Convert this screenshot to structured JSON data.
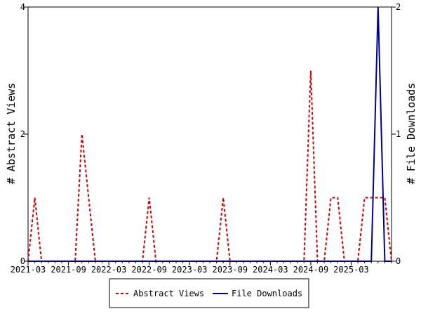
{
  "chart_data": {
    "type": "line",
    "x": [
      "2021-03",
      "2021-04",
      "2021-05",
      "2021-06",
      "2021-07",
      "2021-08",
      "2021-09",
      "2021-10",
      "2021-11",
      "2021-12",
      "2022-01",
      "2022-02",
      "2022-03",
      "2022-04",
      "2022-05",
      "2022-06",
      "2022-07",
      "2022-08",
      "2022-09",
      "2022-10",
      "2022-11",
      "2022-12",
      "2023-01",
      "2023-02",
      "2023-03",
      "2023-04",
      "2023-05",
      "2023-06",
      "2023-07",
      "2023-08",
      "2023-09",
      "2023-10",
      "2023-11",
      "2023-12",
      "2024-01",
      "2024-02",
      "2024-03",
      "2024-04",
      "2024-05",
      "2024-06",
      "2024-07",
      "2024-08",
      "2024-09",
      "2024-10",
      "2024-11",
      "2024-12",
      "2025-01",
      "2025-02",
      "2025-03",
      "2025-04",
      "2025-05",
      "2025-06",
      "2025-07",
      "2025-08",
      "2025-09"
    ],
    "x_ticks": [
      "2021-03",
      "2021-09",
      "2022-03",
      "2022-09",
      "2023-03",
      "2023-09",
      "2024-03",
      "2024-09",
      "2025-03"
    ],
    "series": [
      {
        "name": "Abstract Views",
        "axis": "left",
        "color": "#cc0000",
        "dash": "dashed",
        "values": [
          0,
          1,
          0,
          0,
          0,
          0,
          0,
          0,
          2,
          1,
          0,
          0,
          0,
          0,
          0,
          0,
          0,
          0,
          1,
          0,
          0,
          0,
          0,
          0,
          0,
          0,
          0,
          0,
          0,
          1,
          0,
          0,
          0,
          0,
          0,
          0,
          0,
          0,
          0,
          0,
          0,
          0,
          3,
          0,
          0,
          1,
          1,
          0,
          0,
          0,
          1,
          1,
          1,
          1,
          0
        ]
      },
      {
        "name": "File Downloads",
        "axis": "right",
        "color": "#000099",
        "dash": "solid",
        "values": [
          0,
          0,
          0,
          0,
          0,
          0,
          0,
          0,
          0,
          0,
          0,
          0,
          0,
          0,
          0,
          0,
          0,
          0,
          0,
          0,
          0,
          0,
          0,
          0,
          0,
          0,
          0,
          0,
          0,
          0,
          0,
          0,
          0,
          0,
          0,
          0,
          0,
          0,
          0,
          0,
          0,
          0,
          0,
          0,
          0,
          0,
          0,
          0,
          0,
          0,
          0,
          0,
          2,
          0,
          0
        ]
      }
    ],
    "ylabel_left": "# Abstract Views",
    "ylabel_right": "# File Downloads",
    "ylim_left": [
      0,
      4
    ],
    "ylim_right": [
      0,
      2
    ],
    "yticks_left": [
      "0",
      "2",
      "4"
    ],
    "yticks_right": [
      "0",
      "1",
      "2"
    ],
    "grid": false,
    "legend_position": "bottom"
  }
}
